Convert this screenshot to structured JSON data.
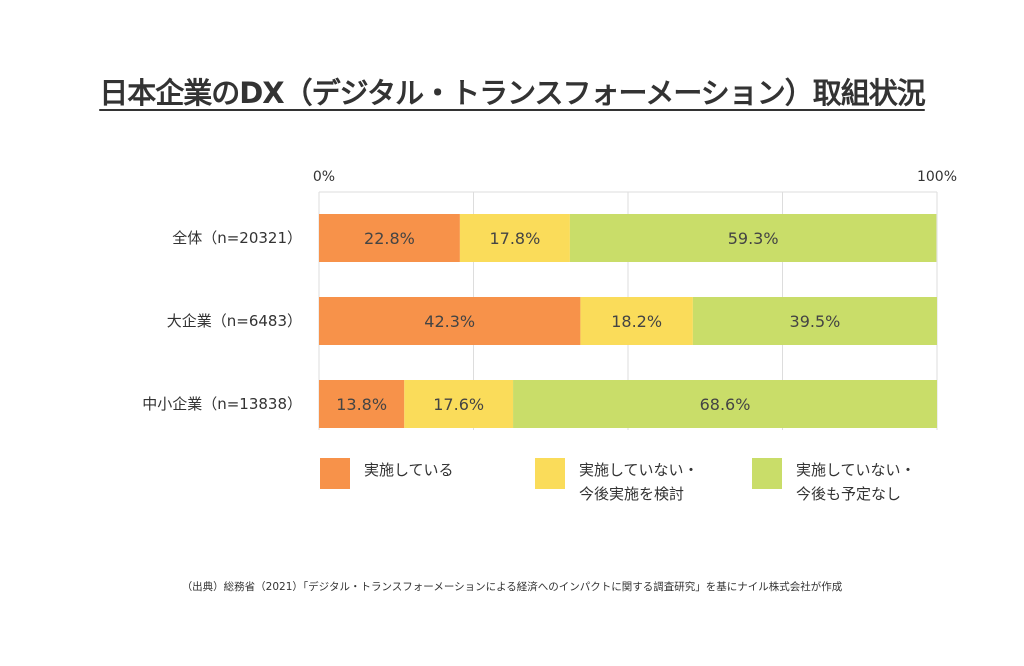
{
  "chart_data": {
    "type": "bar",
    "orientation": "horizontal",
    "stacked": true,
    "title": "日本企業のDX（デジタル・トランスフォーメーション）取組状況",
    "axis": {
      "min_label": "0%",
      "max_label": "100%",
      "range": [
        0,
        100
      ]
    },
    "categories": [
      "全体（n=20321）",
      "大企業（n=6483）",
      "中小企業（n=13838）"
    ],
    "series": [
      {
        "name": "実施している",
        "color": "#F7924A",
        "values": [
          22.8,
          42.3,
          13.8
        ],
        "labels": [
          "22.8%",
          "42.3%",
          "13.8%"
        ]
      },
      {
        "name": "実施していない・今後実施を検討",
        "color": "#FADC5A",
        "values": [
          17.8,
          18.2,
          17.6
        ],
        "labels": [
          "17.8%",
          "18.2%",
          "17.6%"
        ]
      },
      {
        "name": "実施していない・今後も予定なし",
        "color": "#C9DD69",
        "values": [
          59.3,
          39.5,
          68.6
        ],
        "labels": [
          "59.3%",
          "39.5%",
          "68.6%"
        ]
      }
    ]
  },
  "legend": [
    {
      "line1": "実施している",
      "line2": "",
      "color": "#F7924A"
    },
    {
      "line1": "実施していない・",
      "line2": "今後実施を検討",
      "color": "#FADC5A"
    },
    {
      "line1": "実施していない・",
      "line2": "今後も予定なし",
      "color": "#C9DD69"
    }
  ],
  "source": "（出典）総務省（2021）「デジタル・トランスフォーメーションによる経済へのインパクトに関する調査研究」を基にナイル株式会社が作成"
}
